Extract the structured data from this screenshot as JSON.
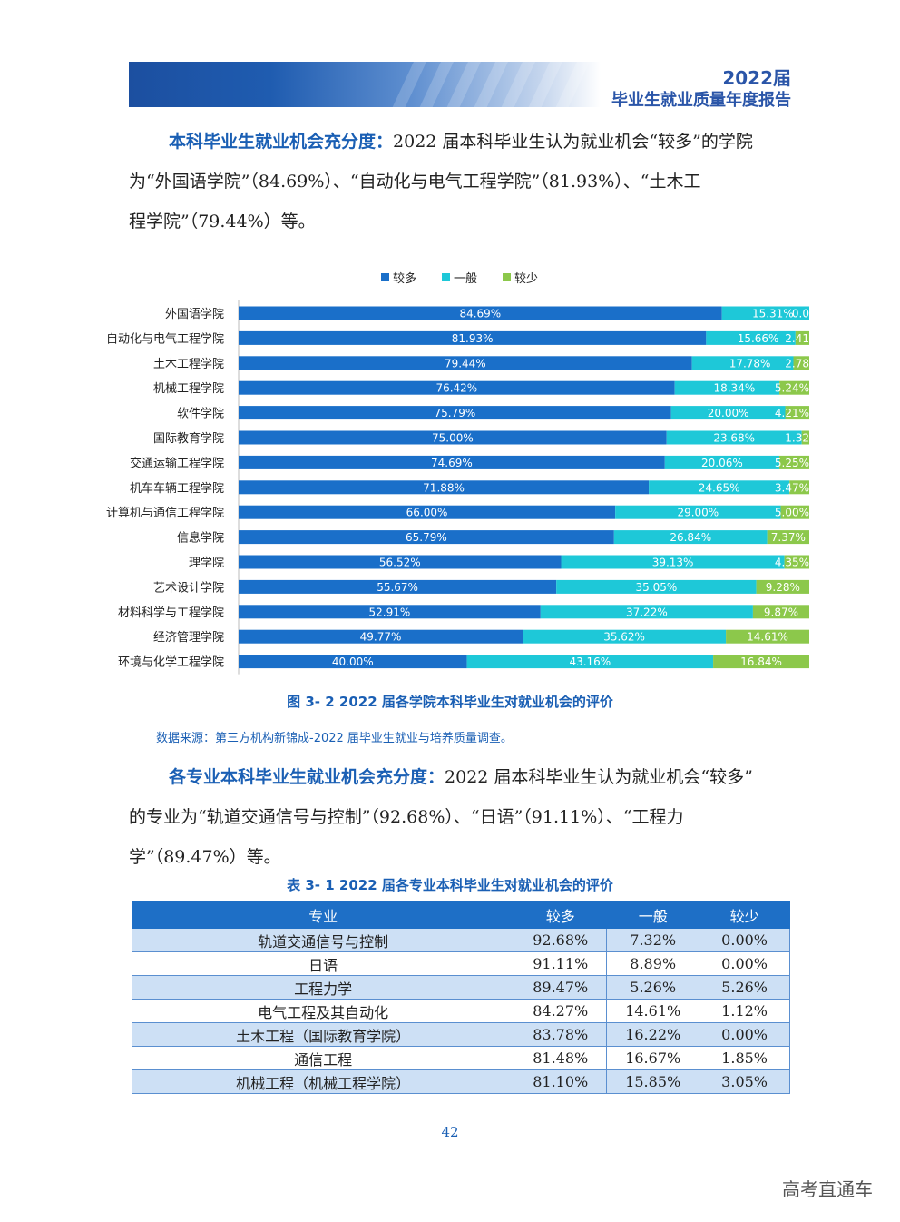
{
  "header": {
    "year": "2022届",
    "title": "毕业生就业质量年度报告"
  },
  "para1": {
    "lead": "本科毕业生就业机会充分度：",
    "line1": "2022 届本科毕业生认为就业机会“较多”的学院",
    "line2": "为“外国语学院”（84.69%）、“自动化与电气工程学院”（81.93%）、“土木工",
    "line3": "程学院”（79.44%）等。"
  },
  "legend": [
    {
      "label": "较多",
      "color": "#1a6fc9"
    },
    {
      "label": "一般",
      "color": "#1ec8d8"
    },
    {
      "label": "较少",
      "color": "#8cc84b"
    }
  ],
  "chart_data": {
    "type": "bar",
    "orientation": "horizontal",
    "stacked": true,
    "categories": [
      "外国语学院",
      "自动化与电气工程学院",
      "土木工程学院",
      "机械工程学院",
      "软件学院",
      "国际教育学院",
      "交通运输工程学院",
      "机车车辆工程学院",
      "计算机与通信工程学院",
      "信息学院",
      "理学院",
      "艺术设计学院",
      "材料科学与工程学院",
      "经济管理学院",
      "环境与化学工程学院"
    ],
    "series": [
      {
        "name": "较多",
        "color": "#1a6fc9",
        "values": [
          84.69,
          81.93,
          79.44,
          76.42,
          75.79,
          75.0,
          74.69,
          71.88,
          66.0,
          65.79,
          56.52,
          55.67,
          52.91,
          49.77,
          40.0
        ],
        "labels": [
          "84.69%",
          "81.93%",
          "79.44%",
          "76.42%",
          "75.79%",
          "75.00%",
          "74.69%",
          "71.88%",
          "66.00%",
          "65.79%",
          "56.52%",
          "55.67%",
          "52.91%",
          "49.77%",
          "40.00%"
        ]
      },
      {
        "name": "一般",
        "color": "#1ec8d8",
        "values": [
          15.31,
          15.66,
          17.78,
          18.34,
          20.0,
          23.68,
          20.06,
          24.65,
          29.0,
          26.84,
          39.13,
          35.05,
          37.22,
          35.62,
          43.16
        ],
        "labels": [
          "15.31%",
          "15.66%",
          "17.78%",
          "18.34%",
          "20.00%",
          "23.68%",
          "20.06%",
          "24.65%",
          "29.00%",
          "26.84%",
          "39.13%",
          "35.05%",
          "37.22%",
          "35.62%",
          "43.16%"
        ]
      },
      {
        "name": "较少",
        "color": "#8cc84b",
        "values": [
          0.0,
          2.41,
          2.78,
          5.24,
          4.21,
          1.32,
          5.25,
          3.47,
          5.0,
          7.37,
          4.35,
          9.28,
          9.87,
          14.61,
          16.84
        ],
        "labels": [
          "0.0",
          "2.41",
          "2.78",
          "5.24%",
          "4.21%",
          "1.32",
          "5.25%",
          "3.47%",
          "5.00%",
          "7.37%",
          "4.35%",
          "9.28%",
          "9.87%",
          "14.61%",
          "16.84%"
        ]
      }
    ],
    "xlim": [
      0,
      100
    ]
  },
  "figure_caption": "图 3- 2    2022 届各学院本科毕业生对就业机会的评价",
  "source": "数据来源：第三方机构新锦成-2022 届毕业生就业与培养质量调查。",
  "para2": {
    "lead": "各专业本科毕业生就业机会充分度：",
    "line1": "2022 届本科毕业生认为就业机会“较多”",
    "line2": "的专业为“轨道交通信号与控制”（92.68%）、“日语”（91.11%）、“工程力",
    "line3": "学”（89.47%）等。"
  },
  "table_caption": "表 3- 1    2022 届各专业本科毕业生对就业机会的评价",
  "table": {
    "headers": [
      "专业",
      "较多",
      "一般",
      "较少"
    ],
    "rows": [
      [
        "轨道交通信号与控制",
        "92.68%",
        "7.32%",
        "0.00%"
      ],
      [
        "日语",
        "91.11%",
        "8.89%",
        "0.00%"
      ],
      [
        "工程力学",
        "89.47%",
        "5.26%",
        "5.26%"
      ],
      [
        "电气工程及其自动化",
        "84.27%",
        "14.61%",
        "1.12%"
      ],
      [
        "土木工程（国际教育学院）",
        "83.78%",
        "16.22%",
        "0.00%"
      ],
      [
        "通信工程",
        "81.48%",
        "16.67%",
        "1.85%"
      ],
      [
        "机械工程（机械工程学院）",
        "81.10%",
        "15.85%",
        "3.05%"
      ]
    ]
  },
  "page_number": "42",
  "watermark": "高考直通车"
}
